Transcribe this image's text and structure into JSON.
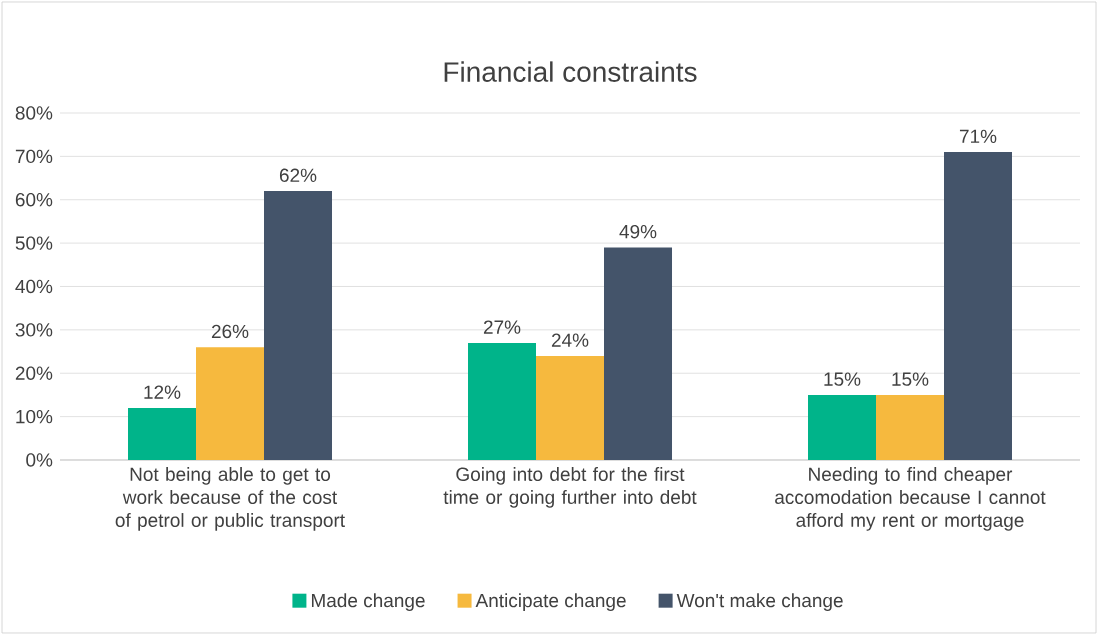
{
  "chart_data": {
    "type": "bar",
    "title": "Financial constraints",
    "categories": [
      "Not being able to get to work because of the cost of petrol or public transport",
      "Going into debt for the first time or going further into debt",
      "Needing to find cheaper accomodation because I cannot afford my rent or mortgage"
    ],
    "series": [
      {
        "name": "Made change",
        "color": "#00b48a",
        "values": [
          12,
          27,
          15
        ],
        "value_labels": [
          "12%",
          "27%",
          "15%"
        ]
      },
      {
        "name": "Anticipate change",
        "color": "#f6b93e",
        "values": [
          26,
          24,
          15
        ],
        "value_labels": [
          "26%",
          "24%",
          "15%"
        ]
      },
      {
        "name": "Won't make change",
        "color": "#44546a",
        "values": [
          62,
          49,
          71
        ],
        "value_labels": [
          "62%",
          "49%",
          "71%"
        ]
      }
    ],
    "ylim": [
      0,
      80
    ],
    "yticks": [
      {
        "value": 0,
        "label": "0%"
      },
      {
        "value": 10,
        "label": "10%"
      },
      {
        "value": 20,
        "label": "20%"
      },
      {
        "value": 30,
        "label": "30%"
      },
      {
        "value": 40,
        "label": "40%"
      },
      {
        "value": 50,
        "label": "50%"
      },
      {
        "value": 60,
        "label": "60%"
      },
      {
        "value": 70,
        "label": "70%"
      },
      {
        "value": 80,
        "label": "80%"
      }
    ],
    "grid": "y",
    "legend": "bottom"
  }
}
